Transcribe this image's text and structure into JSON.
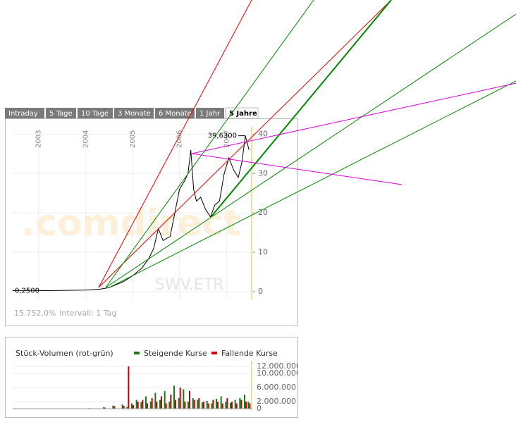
{
  "tabs": [
    "Intraday",
    "5 Tage",
    "10 Tage",
    "3 Monate",
    "6 Monate",
    "1 Jahr",
    "5 Jahre"
  ],
  "selected_tab": 6,
  "chart_data": [
    {
      "type": "line",
      "watermark": ".comdirect",
      "symbol": "SWV.ETR",
      "footer": [
        "15.752,0%",
        "Intervall: 1 Tag"
      ],
      "x": [
        2002.45,
        2002.8,
        2003.2,
        2003.6,
        2004.0,
        2004.3,
        2004.5,
        2004.6,
        2004.8,
        2005.0,
        2005.2,
        2005.35,
        2005.45,
        2005.55,
        2005.65,
        2005.8,
        2005.9,
        2006.0,
        2006.1,
        2006.18,
        2006.24,
        2006.3,
        2006.36,
        2006.45,
        2006.55,
        2006.66,
        2006.75,
        2006.85,
        2006.95,
        2007.05,
        2007.15,
        2007.25,
        2007.33,
        2007.4,
        2007.48
      ],
      "series": [
        {
          "name": "SWV",
          "color": "#000000",
          "values": [
            0.25,
            0.3,
            0.25,
            0.3,
            0.4,
            0.6,
            1.0,
            1.5,
            2.5,
            4,
            6,
            8.5,
            11,
            16,
            13,
            14,
            20,
            26,
            28,
            30,
            36,
            26,
            23,
            24,
            21,
            19,
            22,
            23,
            30,
            34,
            31,
            29,
            33,
            39.63,
            36
          ]
        }
      ],
      "annotations": [
        {
          "label": "39,6300",
          "value": 39.63,
          "x": 2007.4
        },
        {
          "label": "0,2500",
          "value": 0.25,
          "x": 2003.2
        }
      ],
      "xlim": [
        2002.45,
        2007.55
      ],
      "xticks": [
        2003,
        2004,
        2005,
        2006,
        2007
      ],
      "ylim": [
        -2,
        41
      ],
      "yticks": [
        0,
        10,
        20,
        30,
        40
      ],
      "grid": true
    },
    {
      "type": "bar",
      "title": "Stück-Volumen (rot-grün)",
      "x": [
        2002.6,
        2002.9,
        2003.2,
        2003.5,
        2003.8,
        2004.1,
        2004.4,
        2004.6,
        2004.8,
        2004.9,
        2005.0,
        2005.1,
        2005.2,
        2005.3,
        2005.4,
        2005.5,
        2005.6,
        2005.7,
        2005.8,
        2005.9,
        2006.0,
        2006.1,
        2006.2,
        2006.3,
        2006.4,
        2006.5,
        2006.6,
        2006.7,
        2006.8,
        2006.9,
        2007.0,
        2007.1,
        2007.2,
        2007.3,
        2007.4,
        2007.48
      ],
      "series": [
        {
          "name": "Steigende Kurse",
          "color": "#1a7a1a",
          "values": [
            100000,
            80000,
            60000,
            90000,
            70000,
            150000,
            400000,
            900000,
            1200000,
            500000,
            1500000,
            2500000,
            1800000,
            3500000,
            2000000,
            4500000,
            2500000,
            5000000,
            2000000,
            6500000,
            3000000,
            5500000,
            2000000,
            3000000,
            2500000,
            1800000,
            2200000,
            1500000,
            2800000,
            3500000,
            2000000,
            1600000,
            2500000,
            3000000,
            4000000,
            2000000
          ]
        },
        {
          "name": "Fallende Kurse",
          "color": "#cc0000",
          "values": [
            50000,
            60000,
            40000,
            50000,
            60000,
            100000,
            300000,
            700000,
            800000,
            12000000,
            1000000,
            2000000,
            2500000,
            1500000,
            3000000,
            2000000,
            3500000,
            1500000,
            4000000,
            2500000,
            6000000,
            2000000,
            5000000,
            2500000,
            3000000,
            2000000,
            1500000,
            2500000,
            2000000,
            1500000,
            3000000,
            2000000,
            1500000,
            2500000,
            2000000,
            1500000
          ]
        }
      ],
      "xlim": [
        2002.45,
        2007.55
      ],
      "ylim": [
        0,
        13000000
      ],
      "yticks": [
        {
          "value": 0,
          "label": "0"
        },
        {
          "value": 2000000,
          "label": "2.000.000"
        },
        {
          "value": 6000000,
          "label": "6.000.000"
        },
        {
          "value": 10000000,
          "label": "10.000.000"
        },
        {
          "value": 12000000,
          "label": "12.000.000"
        }
      ],
      "grid": true
    }
  ]
}
